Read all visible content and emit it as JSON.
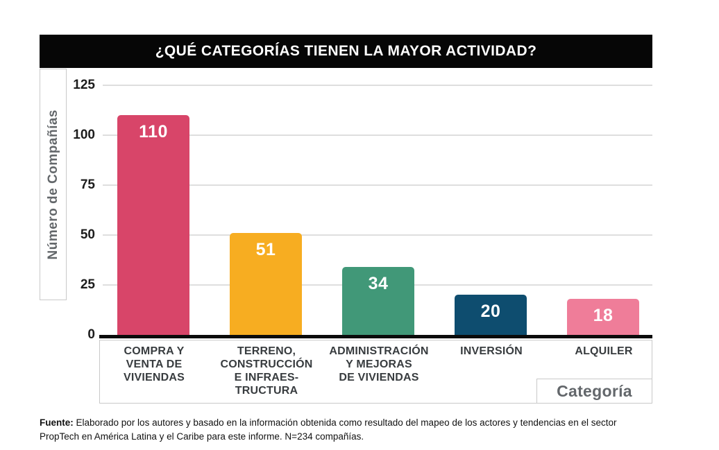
{
  "title": "¿QUÉ CATEGORÍAS TIENEN LA MAYOR ACTIVIDAD?",
  "y_axis_label": "Número de Compañías",
  "x_axis_label": "Categoría",
  "chart_data": {
    "type": "bar",
    "title": "¿QUÉ CATEGORÍAS TIENEN LA MAYOR ACTIVIDAD?",
    "categories": [
      "COMPRA Y\nVENTA DE\nVIVIENDAS",
      "TERRENO,\nCONSTRUCCIÓN\nE INFRAES-\nTRUCTURA",
      "ADMINISTRACIÓN\nY MEJORAS\nDE VIVIENDAS",
      "INVERSIÓN",
      "ALQUILER"
    ],
    "values": [
      110,
      51,
      34,
      20,
      18
    ],
    "bar_colors": [
      "#d84569",
      "#f7ad21",
      "#419878",
      "#0e4d6f",
      "#ef7d99"
    ],
    "value_label_color": "#ffffff",
    "xlabel": "Categoría",
    "ylabel": "Número de Compañías",
    "ylim": [
      0,
      125
    ],
    "yticks": [
      0,
      25,
      50,
      75,
      100,
      125
    ],
    "grid": true,
    "gridline_color": "#dedede",
    "value_labels": "inside-top",
    "title_bar_bg": "#060606",
    "title_color": "#ffffff"
  },
  "footer": {
    "label": "Fuente:",
    "text": " Elaborado por los autores y basado en la información obtenida como resultado del mapeo de los actores y tendencias en el sector PropTech en América Latina y el Caribe para este informe. N=234 compañías."
  }
}
